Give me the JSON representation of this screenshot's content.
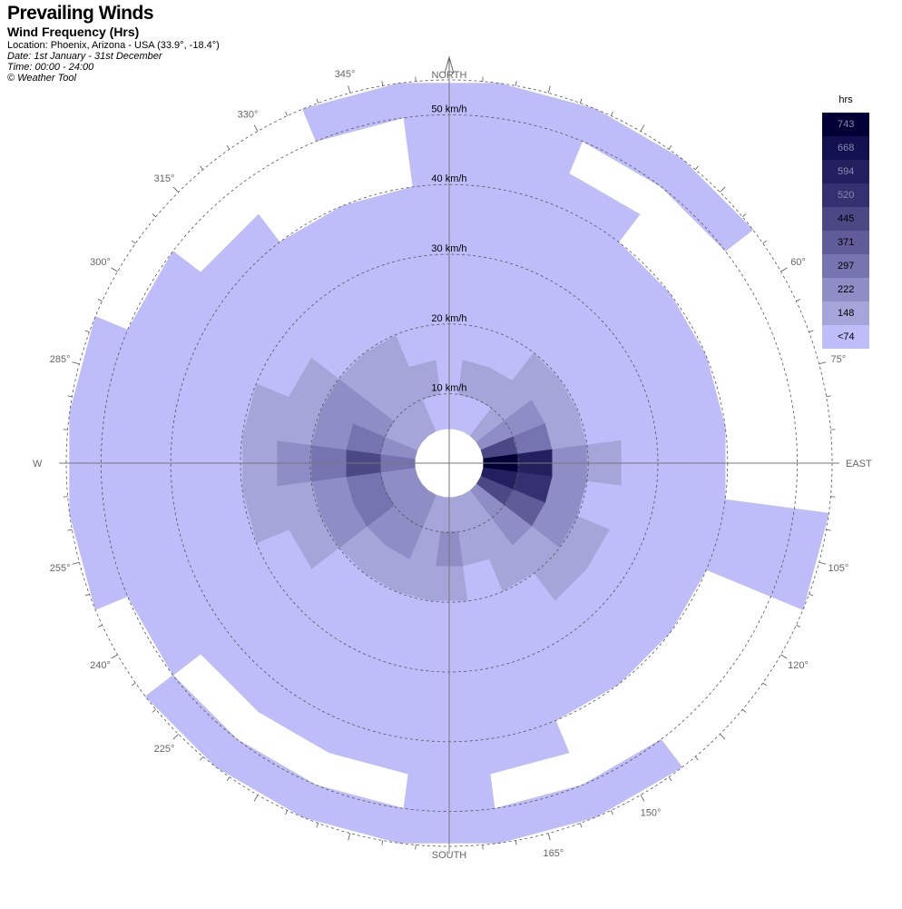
{
  "header": {
    "title": "Prevailing Winds",
    "subtitle": "Wind Frequency (Hrs)",
    "location": "Location: Phoenix, Arizona - USA (33.9°, -18.4°)",
    "date": "Date: 1st January - 31st December",
    "time": "Time: 00:00 - 24:00",
    "credit": "© Weather Tool"
  },
  "legend": {
    "title": "hrs",
    "items": [
      {
        "label": "743",
        "color": "#020035"
      },
      {
        "label": "668",
        "color": "#131050"
      },
      {
        "label": "594",
        "color": "#24205f"
      },
      {
        "label": "520",
        "color": "#35306f"
      },
      {
        "label": "445",
        "color": "#4c4886"
      },
      {
        "label": "371",
        "color": "#5f5c99"
      },
      {
        "label": "297",
        "color": "#7674b0"
      },
      {
        "label": "222",
        "color": "#8e8dc5"
      },
      {
        "label": "148",
        "color": "#a6a5d9"
      },
      {
        "label": "<74",
        "color": "#bebdfa"
      }
    ]
  },
  "chart_data": {
    "type": "wind rose",
    "speed_rings": [
      "10 km/h",
      "20 km/h",
      "30 km/h",
      "40 km/h",
      "50 km/h"
    ],
    "cardinals": {
      "north": "NORTH",
      "east": "EAST",
      "south": "SOUTH",
      "west": "W"
    },
    "angle_labels": [
      "60°",
      "75°",
      "105°",
      "120°",
      "150°",
      "165°",
      "225°",
      "240°",
      "255°",
      "285°",
      "300°",
      "315°",
      "330°",
      "345°"
    ],
    "angles": [
      60,
      75,
      105,
      120,
      150,
      165,
      225,
      240,
      255,
      285,
      300,
      315,
      330,
      345
    ],
    "direction_step_deg": 15,
    "directions": [
      0,
      15,
      30,
      45,
      60,
      75,
      90,
      105,
      120,
      135,
      150,
      165,
      180,
      195,
      210,
      225,
      240,
      255,
      270,
      285,
      300,
      315,
      330,
      345
    ],
    "speed_bins": [
      [
        5,
        10
      ],
      [
        10,
        15
      ],
      [
        15,
        20
      ],
      [
        20,
        25
      ],
      [
        25,
        30
      ],
      [
        30,
        35
      ],
      [
        35,
        40
      ],
      [
        40,
        45
      ],
      [
        45,
        50
      ],
      [
        50,
        55
      ]
    ],
    "legend_scale": [
      74,
      148,
      222,
      297,
      371,
      445,
      520,
      594,
      668,
      743
    ],
    "frequency_bins": [
      [
        0,
        0,
        0,
        0,
        0,
        0,
        0,
        0,
        0,
        0
      ],
      [
        0,
        1,
        0,
        0,
        0,
        0,
        0,
        0,
        0,
        0
      ],
      [
        0,
        1,
        0,
        0,
        0,
        0,
        0,
        0,
        -1,
        0
      ],
      [
        1,
        1,
        1,
        0,
        0,
        0,
        0,
        -1,
        -1,
        0
      ],
      [
        2,
        2,
        1,
        0,
        0,
        0,
        0,
        -1,
        -1,
        -1
      ],
      [
        5,
        3,
        1,
        0,
        0,
        0,
        0,
        -1,
        -1,
        -1
      ],
      [
        9,
        7,
        2,
        1,
        0,
        0,
        0,
        -1,
        -1,
        -1
      ],
      [
        7,
        6,
        2,
        0,
        0,
        0,
        0,
        0,
        0,
        0
      ],
      [
        5,
        4,
        2,
        1,
        0,
        0,
        0,
        -1,
        -1,
        -1
      ],
      [
        2,
        2,
        1,
        1,
        0,
        0,
        0,
        -1,
        -1,
        -1
      ],
      [
        1,
        1,
        1,
        0,
        0,
        0,
        0,
        -1,
        -1,
        0
      ],
      [
        1,
        1,
        0,
        0,
        0,
        0,
        0,
        0,
        -1,
        0
      ],
      [
        1,
        2,
        1,
        0,
        0,
        0,
        0,
        0,
        0,
        0
      ],
      [
        1,
        1,
        1,
        0,
        0,
        0,
        0,
        0,
        -1,
        0
      ],
      [
        2,
        2,
        1,
        0,
        0,
        0,
        0,
        0,
        -1,
        0
      ],
      [
        2,
        2,
        1,
        0,
        0,
        0,
        0,
        0,
        -1,
        0
      ],
      [
        2,
        3,
        2,
        1,
        0,
        0,
        0,
        0,
        0,
        -1
      ],
      [
        2,
        3,
        2,
        1,
        1,
        0,
        0,
        0,
        0,
        0
      ],
      [
        3,
        5,
        3,
        2,
        1,
        0,
        0,
        0,
        0,
        0
      ],
      [
        2,
        3,
        2,
        1,
        1,
        0,
        0,
        0,
        0,
        0
      ],
      [
        1,
        2,
        2,
        1,
        0,
        0,
        0,
        0,
        0,
        -1
      ],
      [
        1,
        1,
        1,
        0,
        0,
        0,
        0,
        0,
        -1,
        -1
      ],
      [
        1,
        1,
        1,
        0,
        0,
        0,
        0,
        -1,
        -1,
        -1
      ],
      [
        0,
        1,
        0,
        0,
        0,
        0,
        0,
        -1,
        -1,
        0
      ]
    ]
  }
}
